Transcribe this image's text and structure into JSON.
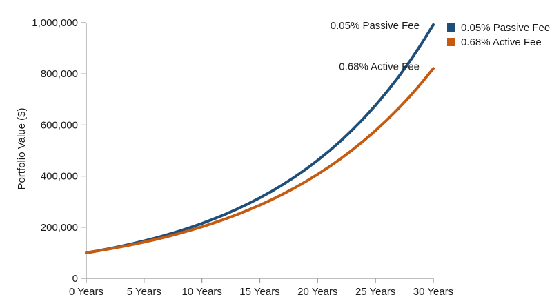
{
  "chart_data": {
    "type": "line",
    "title": "",
    "xlabel": "",
    "ylabel": "Portfolio Value ($)",
    "x": [
      0,
      1,
      2,
      3,
      4,
      5,
      6,
      7,
      8,
      9,
      10,
      11,
      12,
      13,
      14,
      15,
      16,
      17,
      18,
      19,
      20,
      21,
      22,
      23,
      24,
      25,
      26,
      27,
      28,
      29,
      30
    ],
    "xlim": [
      0,
      30
    ],
    "ylim": [
      0,
      1000000
    ],
    "x_ticks": [
      0,
      5,
      10,
      15,
      20,
      25,
      30
    ],
    "x_tick_labels": [
      "0 Years",
      "5 Years",
      "10 Years",
      "15 Years",
      "20 Years",
      "25 Years",
      "30 Years"
    ],
    "y_ticks": [
      0,
      200000,
      400000,
      600000,
      800000,
      1000000
    ],
    "y_tick_labels": [
      "0",
      "200,000",
      "400,000",
      "600,000",
      "800,000",
      "1,000,000"
    ],
    "grid": false,
    "legend_position": "top-right",
    "series": [
      {
        "name": "0.05% Passive Fee",
        "color": "#1f4e79",
        "values": [
          100000,
          107950,
          116530,
          125790,
          135790,
          146590,
          158240,
          170820,
          184400,
          199060,
          214870,
          231950,
          250390,
          270300,
          291780,
          314970,
          340010,
          367040,
          396210,
          427710,
          461710,
          498410,
          538030,
          580800,
          626970,
          676800,
          730600,
          788680,
          851370,
          919050,
          992110
        ]
      },
      {
        "name": "0.68% Active Fee",
        "color": "#c55a11",
        "values": [
          100000,
          107270,
          115070,
          123440,
          132410,
          142040,
          152370,
          163440,
          175330,
          188080,
          201750,
          216420,
          232160,
          249040,
          267140,
          286560,
          307400,
          329750,
          353720,
          379440,
          407030,
          436620,
          468360,
          502410,
          538940,
          578120,
          620150,
          665240,
          713610,
          765490,
          821140
        ]
      }
    ],
    "annotations": [
      {
        "text": "0.05% Passive Fee",
        "series": 0
      },
      {
        "text": "0.68% Active Fee",
        "series": 1
      }
    ]
  }
}
